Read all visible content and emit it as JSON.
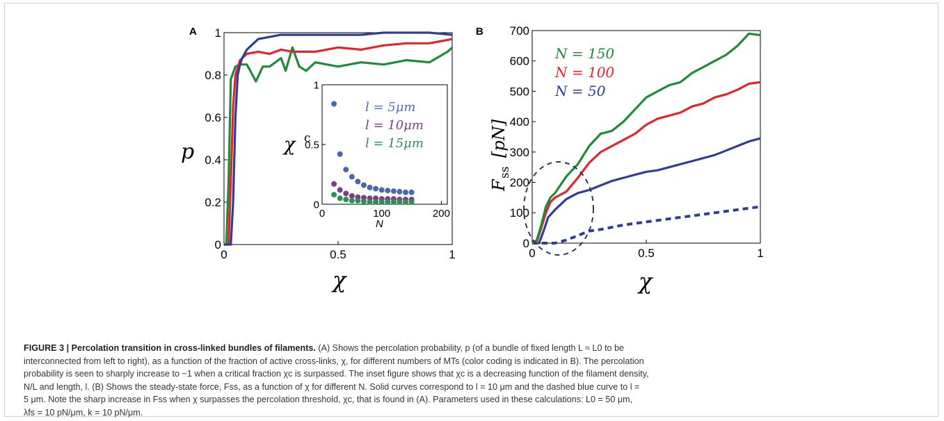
{
  "panel_a": {
    "label": "A",
    "ylabel": "p",
    "xlabel": "χ",
    "xticks": [
      "0",
      "0.5",
      "1"
    ],
    "yticks": [
      "0",
      "0.2",
      "0.4",
      "0.6",
      "0.8",
      "1"
    ],
    "inset": {
      "ylabel": "χ",
      "ylabel_sup": "c",
      "xlabel": "N",
      "xticks": [
        "0",
        "100",
        "200"
      ],
      "yticks": [
        "0",
        "0.5",
        "1"
      ],
      "legend": [
        "l = 5μm",
        "l = 10μm",
        "l = 15μm"
      ]
    }
  },
  "panel_b": {
    "label": "B",
    "ylabel": "F",
    "ylabel_sub": "ss",
    "ylabel_unit": "[pN]",
    "xlabel": "χ",
    "xticks": [
      "0",
      "0.5",
      "1"
    ],
    "yticks": [
      "0",
      "100",
      "200",
      "300",
      "400",
      "500",
      "600",
      "700"
    ],
    "legend": [
      "N = 150",
      "N = 100",
      "N = 50"
    ]
  },
  "colors": {
    "blue": "#2e3d9a",
    "red": "#e3242b",
    "green": "#1f8a3a",
    "inset_blue": "#4a66b0",
    "inset_purple": "#7b3f86",
    "inset_green": "#2f8f55",
    "leg_blue": "#4c6fc4",
    "leg_purple": "#7b3f86",
    "leg_green": "#2f8f55"
  },
  "chart_data": [
    {
      "type": "line",
      "panel": "A",
      "xlabel": "χ",
      "ylabel": "p",
      "xlim": [
        0,
        1
      ],
      "ylim": [
        0,
        1
      ],
      "series": [
        {
          "color": "blue",
          "x": [
            0,
            0.03,
            0.04,
            0.05,
            0.06,
            0.07,
            0.08,
            0.1,
            0.15,
            0.2,
            0.25,
            0.3,
            0.4,
            0.5,
            0.6,
            0.7,
            0.8,
            0.9,
            1.0
          ],
          "y": [
            0,
            0,
            0.2,
            0.6,
            0.8,
            0.85,
            0.88,
            0.92,
            0.97,
            0.98,
            0.99,
            0.99,
            0.99,
            0.99,
            0.99,
            1.0,
            1.0,
            1.0,
            0.99
          ]
        },
        {
          "color": "red",
          "x": [
            0,
            0.02,
            0.03,
            0.04,
            0.05,
            0.07,
            0.1,
            0.15,
            0.2,
            0.25,
            0.3,
            0.4,
            0.5,
            0.6,
            0.7,
            0.8,
            0.9,
            1.0
          ],
          "y": [
            0,
            0,
            0.3,
            0.65,
            0.8,
            0.87,
            0.9,
            0.91,
            0.9,
            0.92,
            0.91,
            0.91,
            0.93,
            0.92,
            0.94,
            0.95,
            0.95,
            0.97
          ]
        },
        {
          "color": "green",
          "x": [
            0,
            0.01,
            0.02,
            0.03,
            0.05,
            0.07,
            0.1,
            0.12,
            0.14,
            0.17,
            0.2,
            0.25,
            0.27,
            0.3,
            0.33,
            0.36,
            0.4,
            0.5,
            0.6,
            0.7,
            0.8,
            0.9,
            0.98,
            1.0
          ],
          "y": [
            0,
            0,
            0.3,
            0.78,
            0.84,
            0.85,
            0.85,
            0.81,
            0.77,
            0.84,
            0.84,
            0.88,
            0.82,
            0.93,
            0.84,
            0.82,
            0.86,
            0.84,
            0.86,
            0.85,
            0.87,
            0.86,
            0.91,
            0.93
          ]
        }
      ]
    },
    {
      "type": "scatter",
      "panel": "A-inset",
      "xlabel": "N",
      "ylabel": "χc",
      "xlim": [
        0,
        210
      ],
      "ylim": [
        0,
        1
      ],
      "x": [
        20,
        30,
        40,
        50,
        60,
        70,
        80,
        90,
        100,
        110,
        120,
        130,
        140,
        150
      ],
      "series": [
        {
          "color": "inset_blue",
          "values": [
            0.84,
            0.42,
            0.29,
            0.23,
            0.19,
            0.16,
            0.14,
            0.13,
            0.12,
            0.115,
            0.11,
            0.105,
            0.1,
            0.1
          ]
        },
        {
          "color": "inset_purple",
          "values": [
            0.17,
            0.12,
            0.09,
            0.07,
            0.06,
            0.055,
            0.05,
            0.05,
            0.045,
            0.045,
            0.045,
            0.04,
            0.04,
            0.04
          ]
        },
        {
          "color": "inset_green",
          "values": [
            0.08,
            0.05,
            0.04,
            0.03,
            0.03,
            0.025,
            0.02,
            0.02,
            0.02,
            0.02,
            0.02,
            0.02,
            0.02,
            0.02
          ]
        }
      ]
    },
    {
      "type": "line",
      "panel": "B",
      "xlabel": "χ",
      "ylabel": "Fss [pN]",
      "xlim": [
        0,
        1
      ],
      "ylim": [
        0,
        700
      ],
      "series": [
        {
          "name": "N = 150",
          "color": "green",
          "x": [
            0,
            0.02,
            0.04,
            0.06,
            0.08,
            0.1,
            0.15,
            0.2,
            0.25,
            0.3,
            0.35,
            0.4,
            0.45,
            0.5,
            0.55,
            0.6,
            0.65,
            0.7,
            0.75,
            0.8,
            0.85,
            0.9,
            0.95,
            1.0
          ],
          "y": [
            0,
            10,
            60,
            120,
            150,
            165,
            220,
            260,
            320,
            360,
            370,
            400,
            440,
            480,
            500,
            520,
            530,
            560,
            580,
            600,
            620,
            650,
            690,
            685
          ]
        },
        {
          "name": "N = 100",
          "color": "red",
          "x": [
            0,
            0.02,
            0.04,
            0.06,
            0.08,
            0.1,
            0.15,
            0.2,
            0.25,
            0.3,
            0.35,
            0.4,
            0.45,
            0.5,
            0.55,
            0.6,
            0.65,
            0.7,
            0.75,
            0.8,
            0.85,
            0.9,
            0.95,
            1.0
          ],
          "y": [
            0,
            5,
            50,
            100,
            135,
            150,
            170,
            215,
            265,
            300,
            320,
            340,
            360,
            390,
            410,
            420,
            430,
            450,
            460,
            480,
            490,
            505,
            525,
            530
          ]
        },
        {
          "name": "N = 50",
          "color": "blue",
          "x": [
            0,
            0.03,
            0.05,
            0.07,
            0.1,
            0.15,
            0.2,
            0.25,
            0.3,
            0.35,
            0.4,
            0.45,
            0.5,
            0.55,
            0.6,
            0.65,
            0.7,
            0.75,
            0.8,
            0.85,
            0.9,
            0.95,
            1.0
          ],
          "y": [
            0,
            0,
            40,
            85,
            110,
            145,
            165,
            175,
            190,
            205,
            215,
            225,
            235,
            240,
            250,
            260,
            270,
            280,
            290,
            305,
            320,
            335,
            345
          ]
        },
        {
          "name": "dashed (l = 5 μm)",
          "color": "blue",
          "dashed": true,
          "x": [
            0,
            0.1,
            0.15,
            0.2,
            0.25,
            0.3,
            0.4,
            0.5,
            0.6,
            0.7,
            0.8,
            0.9,
            1.0
          ],
          "y": [
            0,
            0,
            10,
            25,
            40,
            45,
            60,
            70,
            80,
            90,
            100,
            110,
            120
          ]
        }
      ]
    }
  ],
  "caption": {
    "head": "FIGURE 3 | Percolation transition in cross-linked bundles of filaments.",
    "lines": [
      " (A) Shows the percolation probability, p (of a bundle of fixed length L ≈ L0 to be",
      "interconnected from left to right), as a function of the fraction of active cross-links, χ, for different numbers of MTs (color coding is indicated in B). The percolation",
      "probability is seen to sharply increase to ~1 when a critical fraction χc is surpassed. The inset figure shows that χc is a decreasing function of the filament density,",
      "N/L and length, l. (B) Shows the steady-state force, Fss, as a function of χ for different N. Solid curves correspond to l = 10 μm and the dashed blue curve to l =",
      "5 μm. Note the sharp increase in Fss when χ surpasses the percolation threshold, χc, that is found in (A). Parameters used in these calculations: L0 = 50 μm,",
      "λfs = 10 pN/μm, k = 10 pN/μm."
    ]
  }
}
